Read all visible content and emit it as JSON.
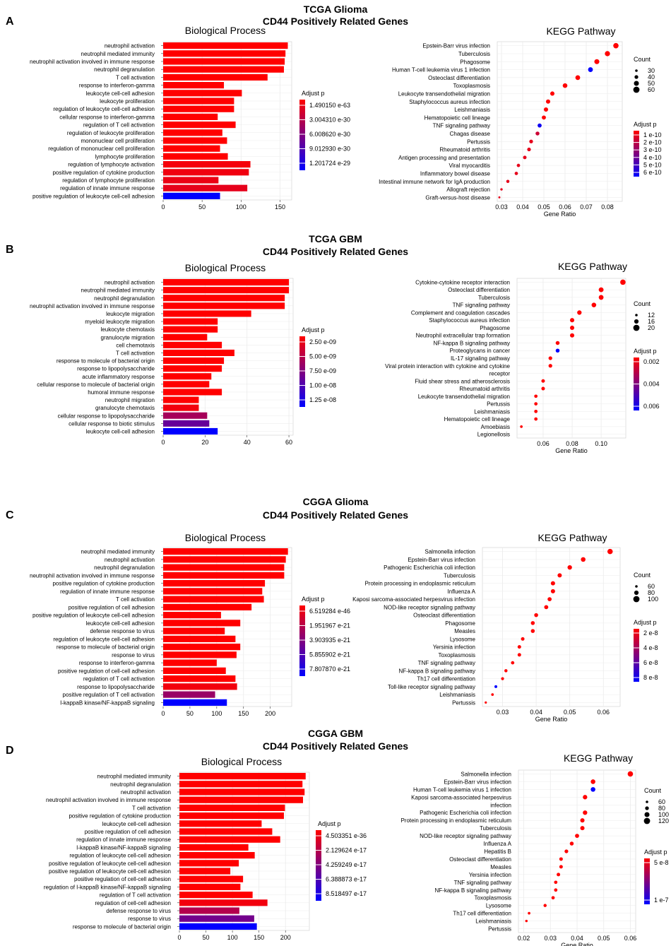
{
  "colors": {
    "high": "#ff0000",
    "low": "#0000ff",
    "grid": "#ebebeb",
    "panel_bg": "#ffffff"
  },
  "chart_data": [
    {
      "panel": "A",
      "dataset": "TCGA Glioma",
      "subtitle": "CD44 Positively Related Genes",
      "bp": {
        "type": "bar",
        "title": "Biological Process",
        "xlim": [
          0,
          165
        ],
        "ticks": [
          0,
          50,
          100,
          150
        ],
        "legend_title": "Adjust p",
        "legend_labels": [
          "1.490150 e-63",
          "3.004310 e-30",
          "6.008620 e-30",
          "9.012930 e-30",
          "1.201724 e-29"
        ],
        "categories": [
          "neutrophil activation",
          "neutrophil mediated immunity",
          "neutrophil activation involved in immune response",
          "neutrophil degranulation",
          "T cell activation",
          "response to interferon-gamma",
          "leukocyte cell-cell adhesion",
          "leukocyte proliferation",
          "regulation of leukocyte cell-cell adhesion",
          "cellular response to interferon-gamma",
          "regulation of T cell activation",
          "regulation of leukocyte proliferation",
          "mononuclear cell proliferation",
          "regulation of mononuclear cell proliferation",
          "lymphocyte proliferation",
          "regulation of lymphocyte activation",
          "positive regulation of cytokine production",
          "regulation of lymphocyte proliferation",
          "regulation of innate immune response",
          "positive regulation of leukocyte cell-cell adhesion"
        ],
        "values": [
          160,
          157,
          156,
          155,
          134,
          78,
          101,
          91,
          91,
          70,
          93,
          76,
          82,
          73,
          83,
          112,
          110,
          71,
          108,
          73
        ],
        "color": [
          0,
          0,
          0,
          0,
          0,
          0,
          0,
          0,
          0,
          0,
          0,
          0,
          0,
          0,
          0,
          0.04,
          0.06,
          0.08,
          0.1,
          1
        ]
      },
      "kegg": {
        "type": "scatter",
        "title": "KEGG Pathway",
        "xlabel": "Gene Ratio",
        "xlim": [
          0.028,
          0.087
        ],
        "ticks": [
          0.03,
          0.04,
          0.05,
          0.06,
          0.07,
          0.08
        ],
        "tick_labels": [
          "0.03",
          "0.04",
          "0.05",
          "0.06",
          "0.07",
          "0.08"
        ],
        "size_title": "Count",
        "size_labels": [
          "30",
          "40",
          "50",
          "60"
        ],
        "legend_title": "Adjust p",
        "legend_labels": [
          "1 e-10",
          "2 e-10",
          "3 e-10",
          "4 e-10",
          "5 e-10",
          "6 e-10"
        ],
        "categories": [
          "Epstein-Barr virus infection",
          "Tuberculosis",
          "Phagosome",
          "Human T-cell leukemia virus 1 infection",
          "Osteoclast differentiation",
          "Toxoplasmosis",
          "Leukocyte transendothelial migration",
          "Staphylococcus aureus infection",
          "Leishmaniasis",
          "Hematopoietic cell lineage",
          "TNF signaling pathway",
          "Chagas disease",
          "Pertussis",
          "Rheumatoid arthritis",
          "Antigen processing and presentation",
          "Viral myocarditis",
          "Inflammatory bowel disease",
          "Intestinal immune network for IgA production",
          "Allograft rejection",
          "Graft-versus-host disease"
        ],
        "x": [
          0.084,
          0.08,
          0.075,
          0.072,
          0.066,
          0.06,
          0.054,
          0.052,
          0.051,
          0.05,
          0.048,
          0.047,
          0.044,
          0.043,
          0.041,
          0.038,
          0.037,
          0.033,
          0.03,
          0.029
        ],
        "color": [
          0,
          0,
          0,
          1,
          0,
          0,
          0,
          0,
          0,
          0,
          0.95,
          0.2,
          0.1,
          0.1,
          0.1,
          0.1,
          0.1,
          0.1,
          0.1,
          0.1
        ],
        "size": [
          1,
          0.95,
          0.9,
          0.85,
          0.85,
          0.8,
          0.7,
          0.7,
          0.7,
          0.65,
          0.65,
          0.6,
          0.55,
          0.55,
          0.5,
          0.45,
          0.45,
          0.4,
          0.2,
          0.1
        ]
      }
    },
    {
      "panel": "B",
      "dataset": "TCGA GBM",
      "subtitle": "CD44 Positively Related Genes",
      "bp": {
        "type": "bar",
        "title": "Biological Process",
        "xlim": [
          0,
          62
        ],
        "ticks": [
          0,
          20,
          40,
          60
        ],
        "legend_title": "Adjust p",
        "legend_labels": [
          "2.50 e-09",
          "5.00 e-09",
          "7.50 e-09",
          "1.00 e-08",
          "1.25 e-08"
        ],
        "categories": [
          "neutrophil activation",
          "neutrophil mediated immunity",
          "neutrophil degranulation",
          "neutrophil activation involved in immune response",
          "leukocyte migration",
          "myeloid leukocyte migration",
          "leukocyte chemotaxis",
          "granulocyte migration",
          "cell chemotaxis",
          "T cell activation",
          "response to molecule of bacterial origin",
          "response to lipopolysaccharide",
          "acute inflammatory response",
          "cellular response to molecule of bacterial origin",
          "humoral immune response",
          "neutrophil migration",
          "granulocyte chemotaxis",
          "cellular response to lipopolysaccharide",
          "cellular response to biotic stimulus",
          "leukocyte cell-cell adhesion"
        ],
        "values": [
          60,
          60,
          58,
          58,
          42,
          26,
          26,
          21,
          28,
          34,
          29,
          28,
          23,
          22,
          28,
          17,
          17,
          21,
          22,
          26
        ],
        "color": [
          0,
          0,
          0,
          0,
          0,
          0,
          0,
          0,
          0,
          0,
          0,
          0,
          0,
          0,
          0,
          0,
          0.05,
          0.35,
          0.6,
          1
        ]
      },
      "kegg": {
        "type": "scatter",
        "title": "KEGG Pathway",
        "xlabel": "Gene Ratio",
        "xlim": [
          0.042,
          0.117
        ],
        "ticks": [
          0.06,
          0.08,
          0.1
        ],
        "tick_labels": [
          "0.06",
          "0.08",
          "0.10"
        ],
        "size_title": "Count",
        "size_labels": [
          "12",
          "16",
          "20"
        ],
        "legend_title": "Adjust p",
        "legend_labels": [
          "0.002",
          "0.004",
          "0.006"
        ],
        "categories": [
          "Cytokine-cytokine receptor interaction",
          "Osteoclast differentiation",
          "Tuberculosis",
          "TNF signaling pathway",
          "Complement and coagulation cascades",
          "Staphylococcus aureus infection",
          "Phagosome",
          "Neutrophil extracellular trap formation",
          "NF-kappa B signaling pathway",
          "Proteoglycans in cancer",
          "IL-17 signaling pathway",
          "Viral protein interaction with cytokine and cytokine",
          "receptor",
          "Fluid shear stress and atherosclerosis",
          "Rheumatoid arthritis",
          "Leukocyte transendothelial migration",
          "Pertussis",
          "Leishmaniasis",
          "Hematopoietic cell lineage",
          "Amoebiasis",
          "Legionellosis"
        ],
        "x": [
          0.115,
          0.1,
          0.1,
          0.095,
          0.085,
          0.08,
          0.08,
          0.08,
          0.07,
          0.07,
          0.065,
          0.065,
          0.065,
          0.06,
          0.06,
          0.055,
          0.055,
          0.055,
          0.055,
          0.045,
          0.045
        ],
        "color": [
          0,
          0,
          0,
          0,
          0,
          0,
          0,
          0,
          0,
          1,
          0,
          0,
          0,
          0,
          0,
          0,
          0,
          0,
          0,
          0,
          0
        ],
        "size": [
          1,
          0.85,
          0.85,
          0.8,
          0.75,
          0.7,
          0.7,
          0.7,
          0.6,
          0.6,
          0.55,
          0.55,
          0.55,
          0.5,
          0.5,
          0.45,
          0.45,
          0.45,
          0.45,
          0.25,
          0
        ],
        "visible": [
          1,
          1,
          1,
          1,
          1,
          1,
          1,
          1,
          1,
          1,
          1,
          1,
          0,
          1,
          1,
          1,
          1,
          1,
          1,
          1,
          0
        ]
      }
    },
    {
      "panel": "C",
      "dataset": "CGGA Glioma",
      "subtitle": "CD44 Positively Related Genes",
      "bp": {
        "type": "bar",
        "title": "Biological Process",
        "xlim": [
          0,
          240
        ],
        "ticks": [
          0,
          50,
          100,
          150,
          200
        ],
        "legend_title": "Adjust p",
        "legend_labels": [
          "6.519284 e-46",
          "1.951967 e-21",
          "3.903935 e-21",
          "5.855902 e-21",
          "7.807870 e-21"
        ],
        "categories": [
          "neutrophil mediated immunity",
          "neutrophil activation",
          "neutrophil degranulation",
          "neutrophil activation involved in immune response",
          "positive regulation of cytokine production",
          "regulation of innate immune response",
          "T cell activation",
          "positive regulation of cell adhesion",
          "positive regulation of leukocyte cell-cell adhesion",
          "leukocyte cell-cell adhesion",
          "defense response to virus",
          "regulation of leukocyte cell-cell adhesion",
          "response to molecule of bacterial origin",
          "response to virus",
          "response to interferon-gamma",
          "positive regulation of cell-cell adhesion",
          "regulation of T cell activation",
          "response to lipopolysaccharide",
          "positive regulation of T cell activation",
          "I-kappaB kinase/NF-kappaB signaling"
        ],
        "values": [
          233,
          229,
          226,
          226,
          190,
          185,
          188,
          165,
          108,
          144,
          115,
          135,
          144,
          137,
          100,
          117,
          135,
          138,
          97,
          119
        ],
        "color": [
          0,
          0,
          0,
          0,
          0,
          0,
          0,
          0,
          0,
          0,
          0,
          0,
          0,
          0,
          0,
          0,
          0,
          0.05,
          0.4,
          1
        ]
      },
      "kegg": {
        "type": "scatter",
        "title": "KEGG Pathway",
        "xlabel": "Gene Ratio",
        "xlim": [
          0.024,
          0.065
        ],
        "ticks": [
          0.03,
          0.04,
          0.05,
          0.06
        ],
        "tick_labels": [
          "0.03",
          "0.04",
          "0.05",
          "0.06"
        ],
        "size_title": "Count",
        "size_labels": [
          "60",
          "80",
          "100"
        ],
        "legend_title": "Adjust p",
        "legend_labels": [
          "2 e-8",
          "4 e-8",
          "6 e-8",
          "8 e-8"
        ],
        "categories": [
          "Salmonella infection",
          "Epstein-Barr virus infection",
          "Pathogenic Escherichia coli infection",
          "Tuberculosis",
          "Protein processing in endoplasmic reticulum",
          "Influenza A",
          "Kaposi sarcoma-associated herpesvirus infection",
          "NOD-like receptor signaling pathway",
          "Osteoclast differentiation",
          "Phagosome",
          "Measles",
          "Lysosome",
          "Yersinia infection",
          "Toxoplasmosis",
          "TNF signaling pathway",
          "NF-kappa B signaling pathway",
          "Th17 cell differentiation",
          "Toll-like receptor signaling pathway",
          "Leishmaniasis",
          "Pertussis"
        ],
        "x": [
          0.062,
          0.054,
          0.05,
          0.047,
          0.045,
          0.045,
          0.044,
          0.043,
          0.04,
          0.039,
          0.039,
          0.036,
          0.035,
          0.035,
          0.033,
          0.031,
          0.03,
          0.028,
          0.027,
          0.025
        ],
        "color": [
          0,
          0,
          0,
          0,
          0,
          0,
          0,
          0,
          0,
          0,
          0,
          0,
          0,
          0,
          0,
          0,
          0,
          1,
          0,
          0
        ],
        "size": [
          1,
          0.8,
          0.75,
          0.7,
          0.7,
          0.7,
          0.65,
          0.65,
          0.6,
          0.6,
          0.6,
          0.5,
          0.5,
          0.5,
          0.45,
          0.4,
          0.35,
          0.3,
          0.25,
          0.15
        ]
      }
    },
    {
      "panel": "D",
      "dataset": "CGGA GBM",
      "subtitle": "CD44 Positively Related Genes",
      "bp": {
        "type": "bar",
        "title": "Biological Process",
        "xlim": [
          0,
          245
        ],
        "ticks": [
          0,
          50,
          100,
          150,
          200
        ],
        "legend_title": "Adjust p",
        "legend_labels": [
          "4.503351 e-36",
          "2.129624 e-17",
          "4.259249 e-17",
          "6.388873 e-17",
          "8.518497 e-17"
        ],
        "categories": [
          "neutrophil mediated immunity",
          "neutrophil degranulation",
          "neutrophil activation",
          "neutrophil activation involved in immune response",
          "T cell activation",
          "positive regulation of cytokine production",
          "leukocyte cell-cell adhesion",
          "positive regulation of cell adhesion",
          "regulation of innate immune response",
          "I-kappaB kinase/NF-kappaB signaling",
          "regulation of leukocyte cell-cell adhesion",
          "positive regulation of leukocyte cell-cell adhesion",
          "positive regulation of leukocyte cell-cell adhesion",
          "positive regulation of cell-cell adhesion",
          "regulation of I-kappaB kinase/NF-kappaB signaling",
          "regulation of T cell activation",
          "regulation of cell-cell adhesion",
          "defense response to virus",
          "response to virus",
          "response to molecule of bacterial origin"
        ],
        "values": [
          238,
          232,
          236,
          233,
          199,
          197,
          155,
          175,
          190,
          130,
          142,
          112,
          96,
          120,
          115,
          138,
          166,
          113,
          141,
          146
        ],
        "color": [
          0,
          0,
          0,
          0,
          0,
          0,
          0,
          0,
          0,
          0,
          0,
          0,
          0,
          0,
          0,
          0,
          0.05,
          0.3,
          0.55,
          1
        ]
      },
      "kegg": {
        "type": "scatter",
        "title": "KEGG Pathway",
        "xlabel": "Gene Ratio",
        "xlim": [
          0.018,
          0.062
        ],
        "ticks": [
          0.02,
          0.03,
          0.04,
          0.05,
          0.06
        ],
        "tick_labels": [
          "0.02",
          "0.03",
          "0.04",
          "0.05",
          "0.06"
        ],
        "size_title": "Count",
        "size_labels": [
          "60",
          "80",
          "100",
          "120"
        ],
        "legend_title": "Adjust p",
        "legend_labels": [
          "5 e-8",
          "1 e-7"
        ],
        "categories": [
          "Salmonella infection",
          "Epstein-Barr virus infection",
          "Human T-cell leukemia virus 1 infection",
          "Kaposi sarcoma-associated herpesvirus",
          "infection",
          "Pathogenic Escherichia coli infection",
          "Protein processing in endoplasmic reticulum",
          "Tuberculosis",
          "NOD-like receptor signaling pathway",
          "Influenza A",
          "Hepatitis B",
          "Osteoclast differentiation",
          "Measles",
          "Yersinia infection",
          "TNF signaling pathway",
          "NF-kappa B signaling pathway",
          "Toxoplasmosis",
          "Lysosome",
          "Th17 cell differentiation",
          "Leishmaniasis",
          "Pertussis"
        ],
        "x": [
          0.06,
          0.046,
          0.046,
          0.043,
          0.043,
          0.043,
          0.042,
          0.042,
          0.04,
          0.038,
          0.036,
          0.034,
          0.034,
          0.033,
          0.032,
          0.032,
          0.031,
          0.028,
          0.022,
          0.021,
          0.019
        ],
        "color": [
          0,
          0,
          1,
          0,
          0,
          0,
          0,
          0,
          0,
          0,
          0,
          0,
          0,
          0,
          0,
          0,
          0,
          0,
          0,
          0,
          0
        ],
        "size": [
          1,
          0.8,
          0.8,
          0.75,
          0.75,
          0.75,
          0.7,
          0.7,
          0.65,
          0.6,
          0.55,
          0.5,
          0.5,
          0.5,
          0.45,
          0.45,
          0.45,
          0.4,
          0.25,
          0.2,
          0
        ],
        "visible": [
          1,
          1,
          1,
          1,
          0,
          1,
          1,
          1,
          1,
          1,
          1,
          1,
          1,
          1,
          1,
          1,
          1,
          1,
          1,
          1,
          0
        ]
      }
    }
  ]
}
